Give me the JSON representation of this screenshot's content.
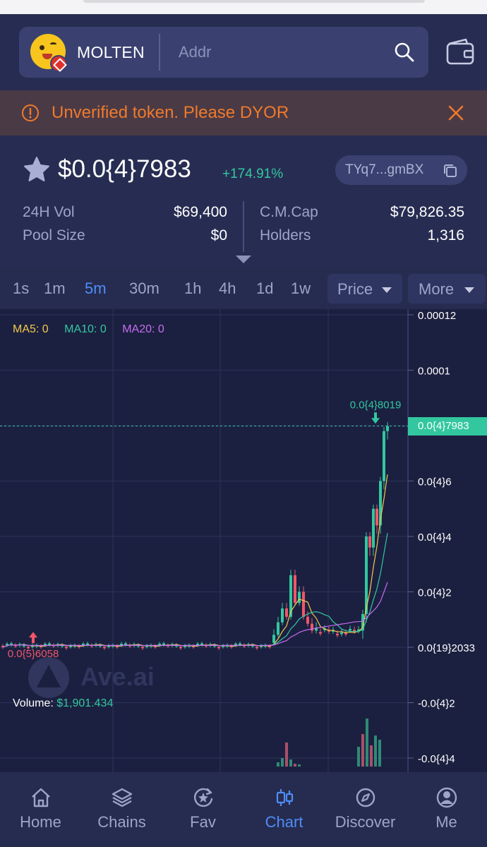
{
  "header": {
    "token_name": "MOLTEN",
    "search_placeholder": "Addr"
  },
  "warning": {
    "text": "Unverified token. Please DYOR"
  },
  "token": {
    "price": "$0.0{4}7983",
    "change": "+174.91%",
    "address": "TYq7...gmBX",
    "stats": {
      "vol_label": "24H Vol",
      "vol_value": "$69,400",
      "pool_label": "Pool Size",
      "pool_value": "$0",
      "mcap_label": "C.M.Cap",
      "mcap_value": "$79,826.35",
      "holders_label": "Holders",
      "holders_value": "1,316"
    }
  },
  "timeframes": {
    "items": [
      "1s",
      "1m",
      "5m",
      "30m",
      "1h",
      "4h",
      "1d",
      "1w"
    ],
    "active": "5m",
    "price_dropdown": "Price",
    "more_dropdown": "More"
  },
  "chart": {
    "ma5": "MA5: 0",
    "ma10": "MA10: 0",
    "ma20": "MA20: 0",
    "y_axis_labels": [
      "0.00012",
      "0.0001",
      "0.0{4}6",
      "0.0{4}4",
      "0.0{4}2",
      "0.0{19}2033",
      "-0.0{4}2",
      "-0.0{4}4"
    ],
    "current_price_tag": "0.0{4}7983",
    "high_marker": "0.0{4}8019",
    "low_marker": "0.0{5}6058",
    "volume_label": "Volume:",
    "volume_value": "$1,901.434",
    "watermark": "Ave.ai",
    "colors": {
      "up": "#33c7a0",
      "down": "#f0566a",
      "ma5": "#f2c94c",
      "ma10": "#33c7a0",
      "ma20": "#c86cf0"
    }
  },
  "chart_data": {
    "type": "candlestick",
    "ylim": [
      -4e-05,
      0.00012
    ],
    "y_ticks": [
      0.00012,
      0.0001,
      8e-05,
      6e-05,
      4e-05,
      2e-05,
      0.0,
      -2e-05,
      -4e-05
    ],
    "series": [
      {
        "name": "MA5: 0",
        "values": []
      },
      {
        "name": "MA10: 0",
        "values": []
      },
      {
        "name": "MA20: 0",
        "values": []
      }
    ],
    "current_price": 7.983e-05,
    "high": 8.019e-05,
    "low": 6.058e-06
  },
  "nav": {
    "items": [
      "Home",
      "Chains",
      "Fav",
      "Chart",
      "Discover",
      "Me"
    ],
    "active": "Chart"
  }
}
